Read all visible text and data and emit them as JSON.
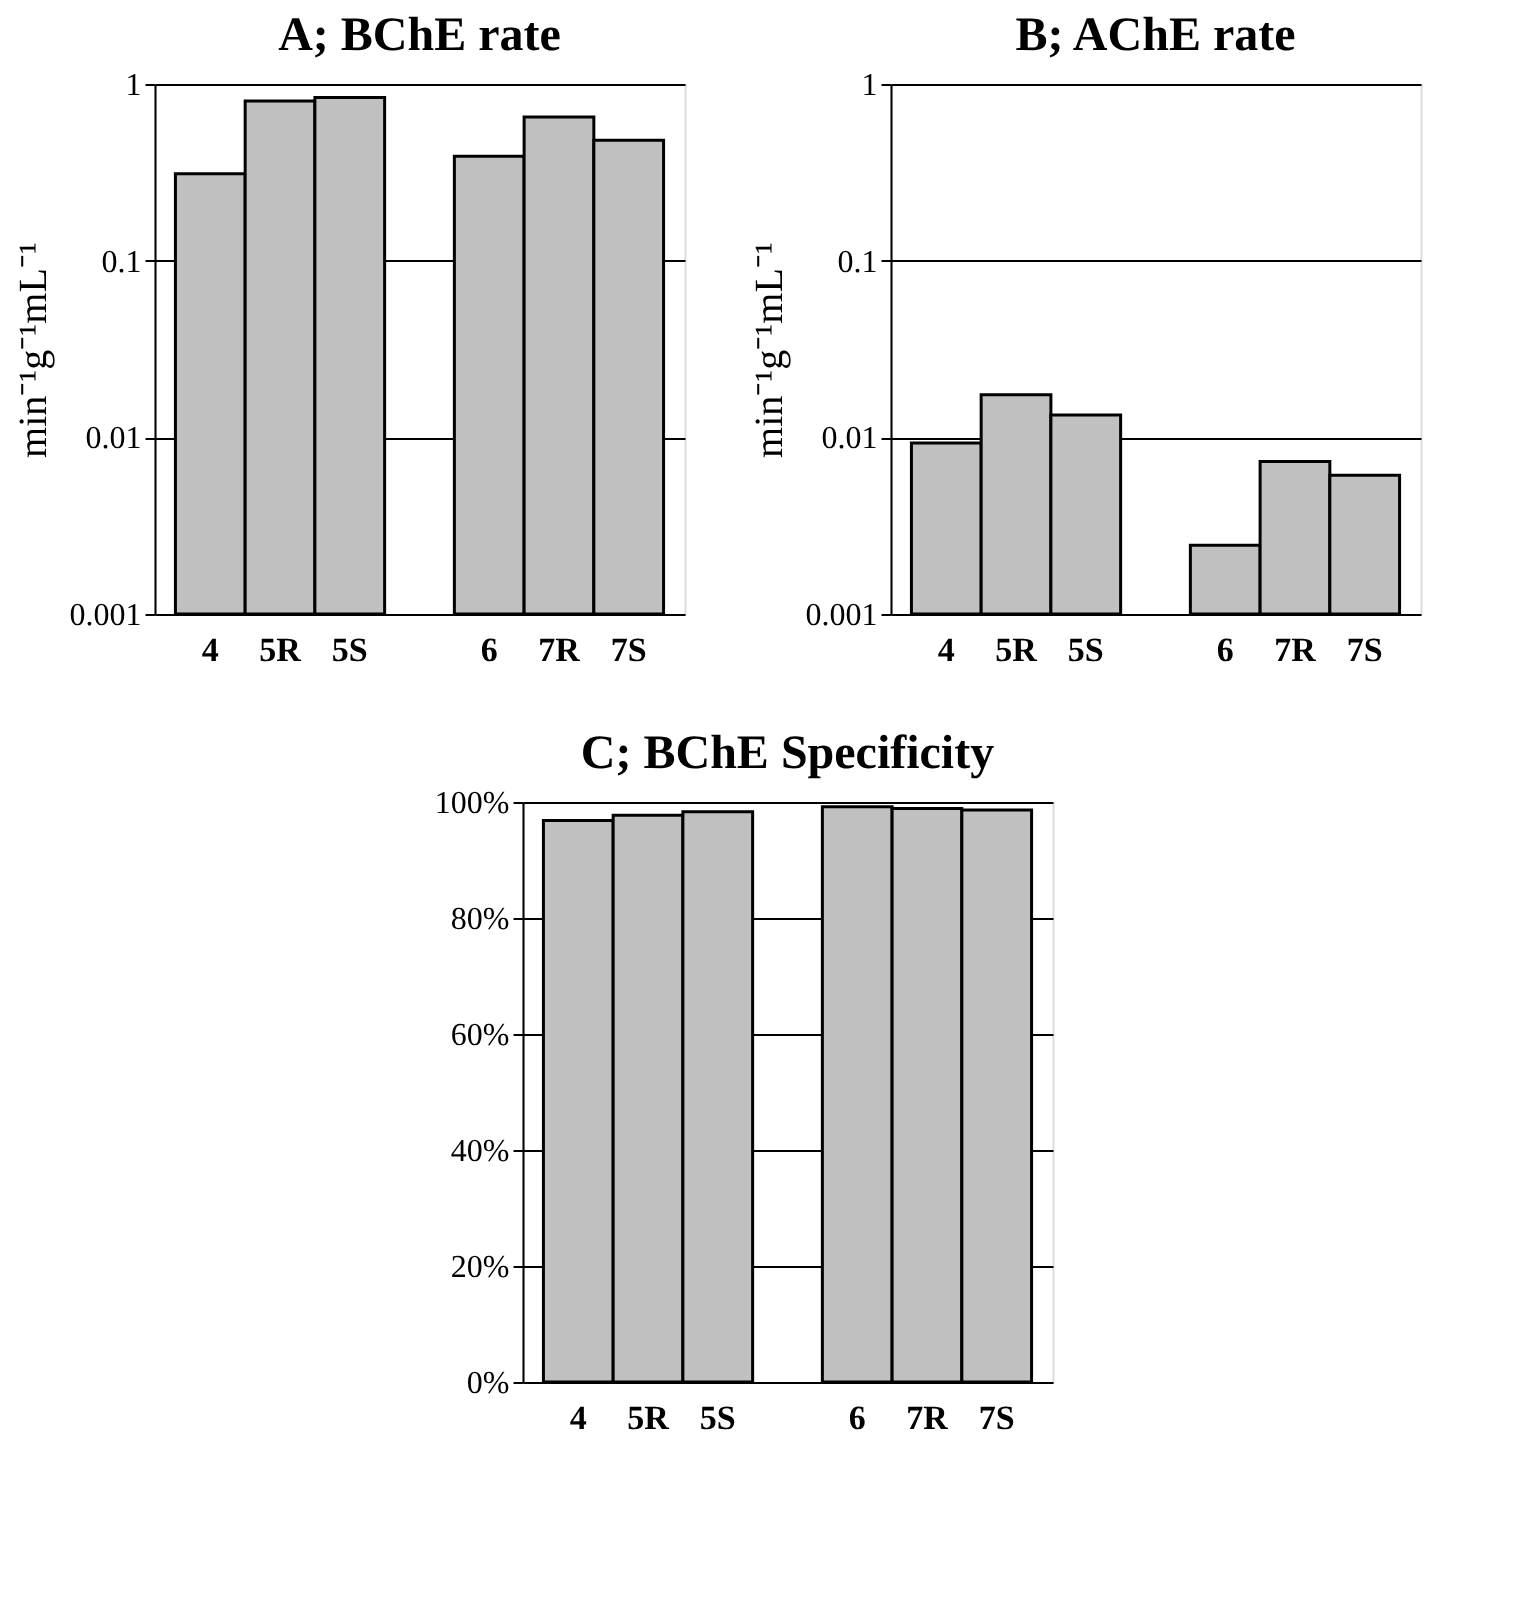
{
  "chart_data": [
    {
      "type": "bar",
      "title": "A; BChE rate",
      "ylabel": "min⁻¹g⁻¹mL⁻¹",
      "categories": [
        "4",
        "5R",
        "5S",
        null,
        "6",
        "7R",
        "7S"
      ],
      "values": [
        0.31,
        0.8,
        0.84,
        null,
        0.39,
        0.65,
        0.48
      ],
      "color": "#c0c0c0",
      "log": true,
      "ylim": [
        0.001,
        1
      ],
      "yticks": [
        0.001,
        0.01,
        0.1,
        1
      ],
      "grid": "y"
    },
    {
      "type": "bar",
      "title": "B; AChE rate",
      "ylabel": "min⁻¹g⁻¹mL⁻¹",
      "categories": [
        "4",
        "5R",
        "5S",
        null,
        "6",
        "7R",
        "7S"
      ],
      "values": [
        0.0093,
        0.0174,
        0.0134,
        null,
        0.00245,
        0.0073,
        0.0061
      ],
      "color": "#c0c0c0",
      "log": true,
      "ylim": [
        0.001,
        1
      ],
      "yticks": [
        0.001,
        0.01,
        0.1,
        1
      ],
      "grid": "y"
    },
    {
      "type": "bar",
      "title": "C; BChE Specificity",
      "categories": [
        "4",
        "5R",
        "5S",
        null,
        "6",
        "7R",
        "7S"
      ],
      "values": [
        96.8,
        97.7,
        98.3,
        null,
        99.2,
        98.9,
        98.6
      ],
      "color": "#c0c0c0",
      "ylim": [
        0,
        100
      ],
      "yticks": [
        {
          "value": 0,
          "label": "0%"
        },
        {
          "value": 20,
          "label": "20%"
        },
        {
          "value": 40,
          "label": "40%"
        },
        {
          "value": 60,
          "label": "60%"
        },
        {
          "value": 80,
          "label": "80%"
        },
        {
          "value": 100,
          "label": "100%"
        }
      ],
      "grid": "y"
    }
  ]
}
